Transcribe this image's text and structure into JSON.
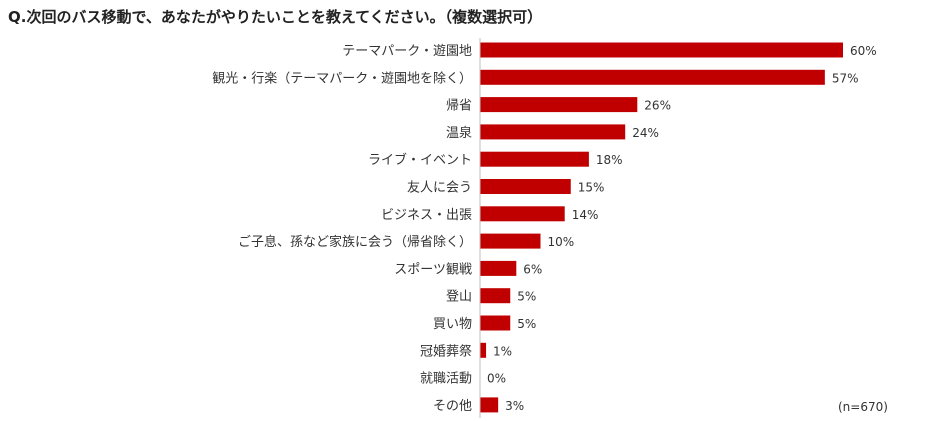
{
  "title": "Q.次回のバス移動で、あなたがやりたいことを教えてください。（複数選択可）",
  "note": "(n=670)",
  "colors": {
    "bar": "#c00000"
  },
  "chart_data": {
    "type": "bar",
    "orientation": "horizontal",
    "categories": [
      "テーマパーク・遊園地",
      "観光・行楽（テーマパーク・遊園地を除く）",
      "帰省",
      "温泉",
      "ライブ・イベント",
      "友人に会う",
      "ビジネス・出張",
      "ご子息、孫など家族に会う（帰省除く）",
      "スポーツ観戦",
      "登山",
      "買い物",
      "冠婚葬祭",
      "就職活動",
      "その他"
    ],
    "values": [
      60,
      57,
      26,
      24,
      18,
      15,
      14,
      10,
      6,
      5,
      5,
      1,
      0,
      3
    ],
    "value_labels": [
      "60%",
      "57%",
      "26%",
      "24%",
      "18%",
      "15%",
      "14%",
      "10%",
      "6%",
      "5%",
      "5%",
      "1%",
      "0%",
      "3%"
    ],
    "xlim": [
      0,
      60
    ],
    "grid": false,
    "legend": "none"
  }
}
